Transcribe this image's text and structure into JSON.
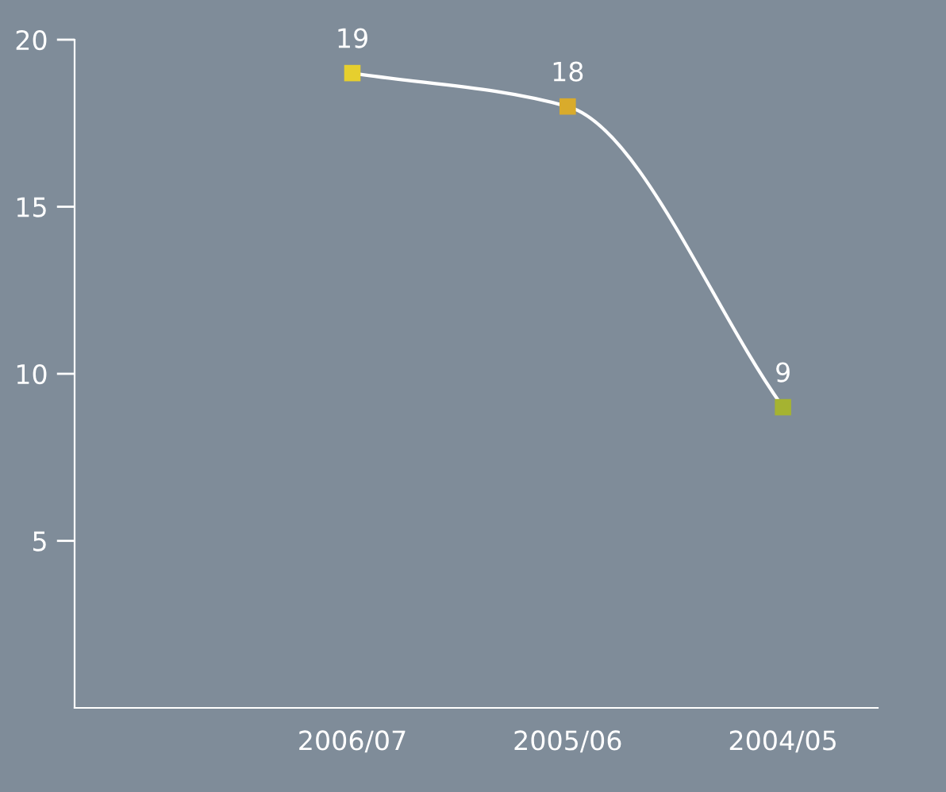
{
  "chart_data": {
    "type": "line",
    "categories": [
      "2006/07",
      "2005/06",
      "2004/05"
    ],
    "series": [
      {
        "color": "#ffffff",
        "values": [
          19,
          18,
          9
        ],
        "colors": [
          "#e6cf2e",
          "#d9ab2b",
          "#a5b331"
        ]
      }
    ],
    "ylim": [
      0,
      20
    ],
    "yticks": [
      5,
      10,
      15,
      20
    ],
    "data_labels": true,
    "marker": "square",
    "grid": false,
    "legend": false
  }
}
